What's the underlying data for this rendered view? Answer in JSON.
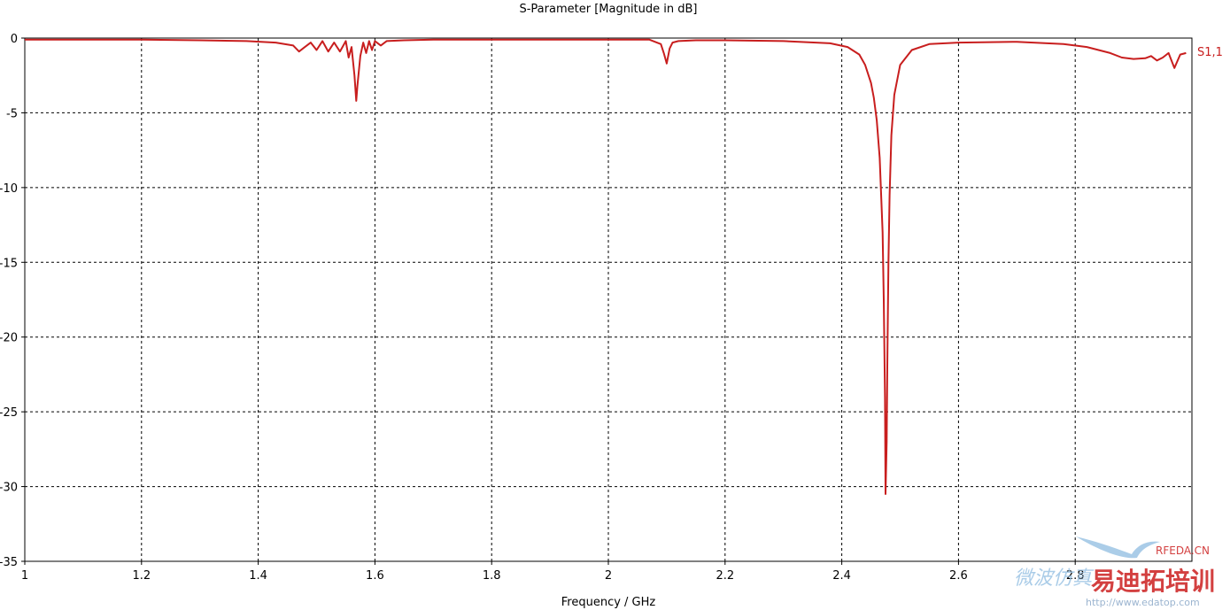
{
  "chart_data": {
    "type": "line",
    "title": "S-Parameter [Magnitude in dB]",
    "xlabel": "Frequency / GHz",
    "ylabel": "",
    "xlim": [
      1,
      3.0
    ],
    "ylim": [
      -35,
      0
    ],
    "x_ticks": [
      "1",
      "1.2",
      "1.4",
      "1.6",
      "1.8",
      "2",
      "2.2",
      "2.4",
      "2.6",
      "2.8"
    ],
    "x_tick_values": [
      1.0,
      1.2,
      1.4,
      1.6,
      1.8,
      2.0,
      2.2,
      2.4,
      2.6,
      2.8
    ],
    "y_ticks": [
      "0",
      "-5",
      "-10",
      "-15",
      "-20",
      "-25",
      "-30",
      "-35"
    ],
    "y_tick_values": [
      0,
      -5,
      -10,
      -15,
      -20,
      -25,
      -30,
      -35
    ],
    "grid": true,
    "legend_position": "right",
    "series": [
      {
        "name": "S1,1",
        "color": "#c81e1e",
        "x": [
          1.0,
          1.1,
          1.2,
          1.3,
          1.38,
          1.43,
          1.46,
          1.47,
          1.48,
          1.49,
          1.5,
          1.51,
          1.52,
          1.53,
          1.54,
          1.55,
          1.555,
          1.56,
          1.565,
          1.568,
          1.57,
          1.575,
          1.58,
          1.585,
          1.59,
          1.595,
          1.6,
          1.61,
          1.62,
          1.65,
          1.7,
          1.75,
          1.8,
          1.9,
          2.0,
          2.07,
          2.09,
          2.095,
          2.1,
          2.105,
          2.11,
          2.12,
          2.15,
          2.2,
          2.3,
          2.38,
          2.41,
          2.43,
          2.44,
          2.45,
          2.455,
          2.46,
          2.465,
          2.47,
          2.472,
          2.474,
          2.475,
          2.477,
          2.478,
          2.48,
          2.482,
          2.485,
          2.49,
          2.5,
          2.52,
          2.55,
          2.6,
          2.7,
          2.78,
          2.82,
          2.86,
          2.88,
          2.9,
          2.92,
          2.93,
          2.94,
          2.95,
          2.96,
          2.97,
          2.98,
          2.99
        ],
        "y": [
          -0.1,
          -0.1,
          -0.1,
          -0.15,
          -0.2,
          -0.3,
          -0.5,
          -0.9,
          -0.6,
          -0.3,
          -0.8,
          -0.2,
          -0.9,
          -0.3,
          -0.9,
          -0.2,
          -1.3,
          -0.6,
          -2.5,
          -4.2,
          -3.2,
          -1.2,
          -0.3,
          -1.0,
          -0.2,
          -0.8,
          -0.2,
          -0.5,
          -0.2,
          -0.15,
          -0.1,
          -0.1,
          -0.1,
          -0.1,
          -0.1,
          -0.1,
          -0.4,
          -1.0,
          -1.7,
          -0.7,
          -0.3,
          -0.2,
          -0.15,
          -0.15,
          -0.2,
          -0.35,
          -0.6,
          -1.1,
          -1.8,
          -3.0,
          -4.0,
          -5.5,
          -8.0,
          -13.0,
          -17.5,
          -24.0,
          -30.5,
          -27.0,
          -22.0,
          -15.0,
          -10.5,
          -6.5,
          -3.8,
          -1.8,
          -0.8,
          -0.4,
          -0.3,
          -0.25,
          -0.4,
          -0.6,
          -1.0,
          -1.3,
          -1.4,
          -1.35,
          -1.2,
          -1.5,
          -1.3,
          -1.0,
          -2.0,
          -1.1,
          -1.0
        ]
      }
    ]
  },
  "watermark": {
    "brand": "RFEDA.CN",
    "cn_main": "易迪拓培训",
    "cn_script": "微波仿真",
    "url": "http://www.edatop.com",
    "color_main": "#cc1f1f",
    "color_light": "#9cc4e4"
  }
}
